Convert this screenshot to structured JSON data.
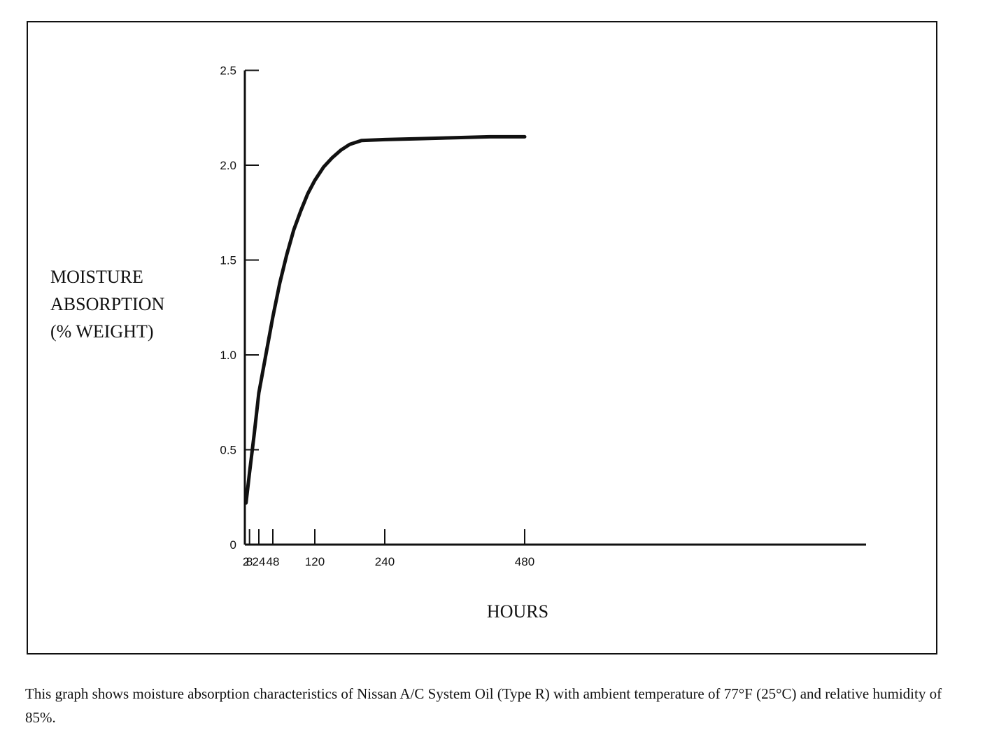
{
  "chart_data": {
    "type": "line",
    "title": "",
    "xlabel": "HOURS",
    "ylabel": [
      "MOISTURE",
      "ABSORPTION",
      "(% WEIGHT)"
    ],
    "x_ticks": [
      2,
      8,
      24,
      48,
      120,
      240,
      480
    ],
    "x_tick_labels": [
      "2",
      "8",
      "24",
      "48",
      "120",
      "240",
      "480"
    ],
    "y_ticks": [
      0,
      0.5,
      1.0,
      1.5,
      2.0,
      2.5
    ],
    "y_tick_labels": [
      "0",
      "0.5",
      "1.0",
      "1.5",
      "2.0",
      "2.5"
    ],
    "ylim": [
      0,
      2.5
    ],
    "grid": false,
    "series": [
      {
        "x": [
          2,
          8,
          16,
          24,
          36,
          48,
          60,
          72,
          84,
          96,
          108,
          120,
          135,
          150,
          165,
          180,
          200,
          240,
          300,
          360,
          420,
          480
        ],
        "values": [
          0.22,
          0.38,
          0.58,
          0.8,
          1.0,
          1.2,
          1.38,
          1.53,
          1.66,
          1.76,
          1.85,
          1.92,
          1.99,
          2.04,
          2.08,
          2.11,
          2.13,
          2.135,
          2.14,
          2.145,
          2.15,
          2.15
        ]
      }
    ]
  },
  "caption": "This graph shows moisture absorption characteristics of Nissan A/C System Oil (Type R) with ambient temperature of 77°F (25°C) and relative humidity of 85%."
}
